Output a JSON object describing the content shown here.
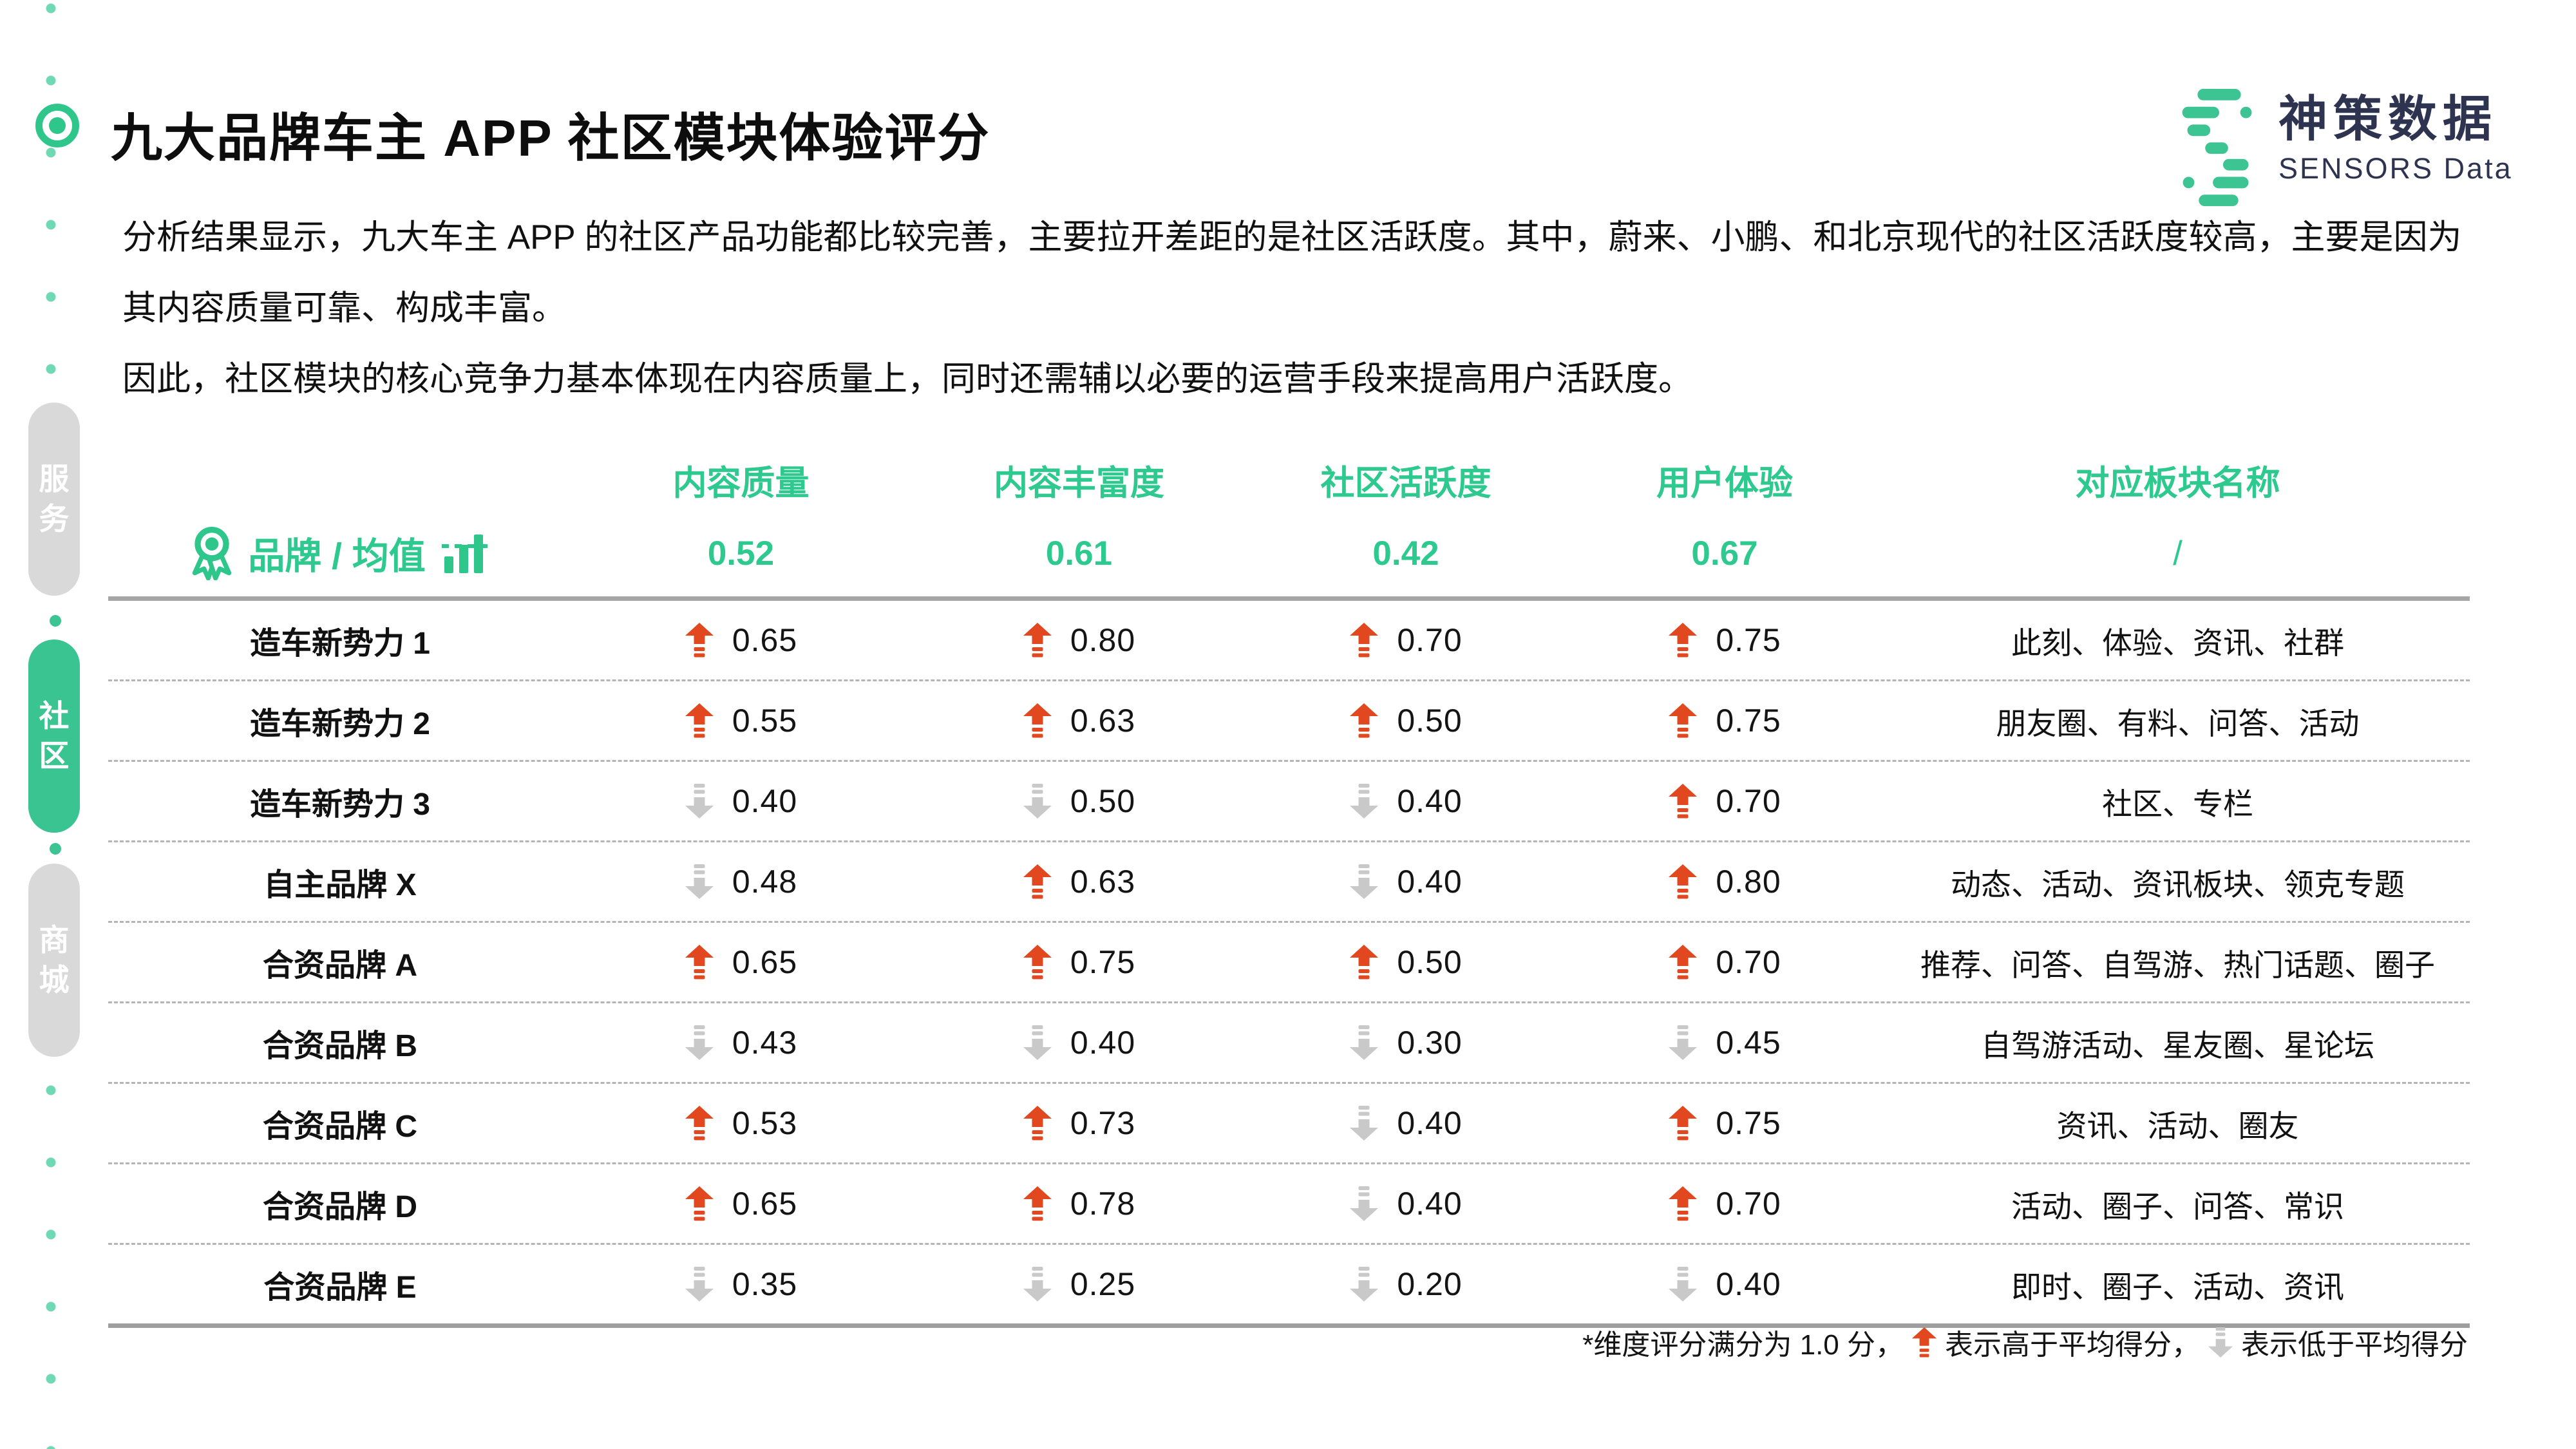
{
  "colors": {
    "accent": "#2ec98e",
    "tab_green": "#3ac492",
    "tab_gray": "#d9d9d9",
    "arrow_up": "#e2481f",
    "arrow_down": "#c9c9c9",
    "navy": "#2e3350",
    "dot": "#6fd9b2",
    "dot_strong": "#3cc492",
    "line_solid": "#a6a6a6",
    "line_dash": "#b5b5b5"
  },
  "sidebar": {
    "tabs": [
      {
        "label": "服务",
        "active": false
      },
      {
        "label": "社区",
        "active": true
      },
      {
        "label": "商城",
        "active": false
      }
    ]
  },
  "header": {
    "title": "九大品牌车主 APP 社区模块体验评分"
  },
  "logo": {
    "name_cn": "神策数据",
    "name_en": "SENSORS Data"
  },
  "intro": {
    "p1": "分析结果显示，九大车主 APP 的社区产品功能都比较完善，主要拉开差距的是社区活跃度。其中，蔚来、小鹏、和北京现代的社区活跃度较高，主要是因为其内容质量可靠、构成丰富。",
    "p2": "因此，社区模块的核心竞争力基本体现在内容质量上，同时还需辅以必要的运营手段来提高用户活跃度。"
  },
  "table": {
    "brand_header": "品牌 / 均值",
    "columns": [
      "内容质量",
      "内容丰富度",
      "社区活跃度",
      "用户体验",
      "对应板块名称"
    ],
    "averages": [
      "0.52",
      "0.61",
      "0.42",
      "0.67"
    ],
    "averages_sections": "/",
    "rows": [
      {
        "brand": "造车新势力 1",
        "scores": [
          {
            "v": "0.65",
            "dir": "up"
          },
          {
            "v": "0.80",
            "dir": "up"
          },
          {
            "v": "0.70",
            "dir": "up"
          },
          {
            "v": "0.75",
            "dir": "up"
          }
        ],
        "sections": "此刻、体验、资讯、社群"
      },
      {
        "brand": "造车新势力 2",
        "scores": [
          {
            "v": "0.55",
            "dir": "up"
          },
          {
            "v": "0.63",
            "dir": "up"
          },
          {
            "v": "0.50",
            "dir": "up"
          },
          {
            "v": "0.75",
            "dir": "up"
          }
        ],
        "sections": "朋友圈、有料、问答、活动"
      },
      {
        "brand": "造车新势力 3",
        "scores": [
          {
            "v": "0.40",
            "dir": "down"
          },
          {
            "v": "0.50",
            "dir": "down"
          },
          {
            "v": "0.40",
            "dir": "down"
          },
          {
            "v": "0.70",
            "dir": "up"
          }
        ],
        "sections": "社区、专栏"
      },
      {
        "brand": "自主品牌 X",
        "scores": [
          {
            "v": "0.48",
            "dir": "down"
          },
          {
            "v": "0.63",
            "dir": "up"
          },
          {
            "v": "0.40",
            "dir": "down"
          },
          {
            "v": "0.80",
            "dir": "up"
          }
        ],
        "sections": "动态、活动、资讯板块、领克专题"
      },
      {
        "brand": "合资品牌 A",
        "scores": [
          {
            "v": "0.65",
            "dir": "up"
          },
          {
            "v": "0.75",
            "dir": "up"
          },
          {
            "v": "0.50",
            "dir": "up"
          },
          {
            "v": "0.70",
            "dir": "up"
          }
        ],
        "sections": "推荐、问答、自驾游、热门话题、圈子"
      },
      {
        "brand": "合资品牌 B",
        "scores": [
          {
            "v": "0.43",
            "dir": "down"
          },
          {
            "v": "0.40",
            "dir": "down"
          },
          {
            "v": "0.30",
            "dir": "down"
          },
          {
            "v": "0.45",
            "dir": "down"
          }
        ],
        "sections": "自驾游活动、星友圈、星论坛"
      },
      {
        "brand": "合资品牌 C",
        "scores": [
          {
            "v": "0.53",
            "dir": "up"
          },
          {
            "v": "0.73",
            "dir": "up"
          },
          {
            "v": "0.40",
            "dir": "down"
          },
          {
            "v": "0.75",
            "dir": "up"
          }
        ],
        "sections": "资讯、活动、圈友"
      },
      {
        "brand": "合资品牌 D",
        "scores": [
          {
            "v": "0.65",
            "dir": "up"
          },
          {
            "v": "0.78",
            "dir": "up"
          },
          {
            "v": "0.40",
            "dir": "down"
          },
          {
            "v": "0.70",
            "dir": "up"
          }
        ],
        "sections": "活动、圈子、问答、常识"
      },
      {
        "brand": "合资品牌 E",
        "scores": [
          {
            "v": "0.35",
            "dir": "down"
          },
          {
            "v": "0.25",
            "dir": "down"
          },
          {
            "v": "0.20",
            "dir": "down"
          },
          {
            "v": "0.40",
            "dir": "down"
          }
        ],
        "sections": "即时、圈子、活动、资讯"
      }
    ]
  },
  "footnote": {
    "prefix": "*维度评分满分为 1.0 分，",
    "up_meaning": "表示高于平均得分，",
    "down_meaning": "表示低于平均得分"
  }
}
